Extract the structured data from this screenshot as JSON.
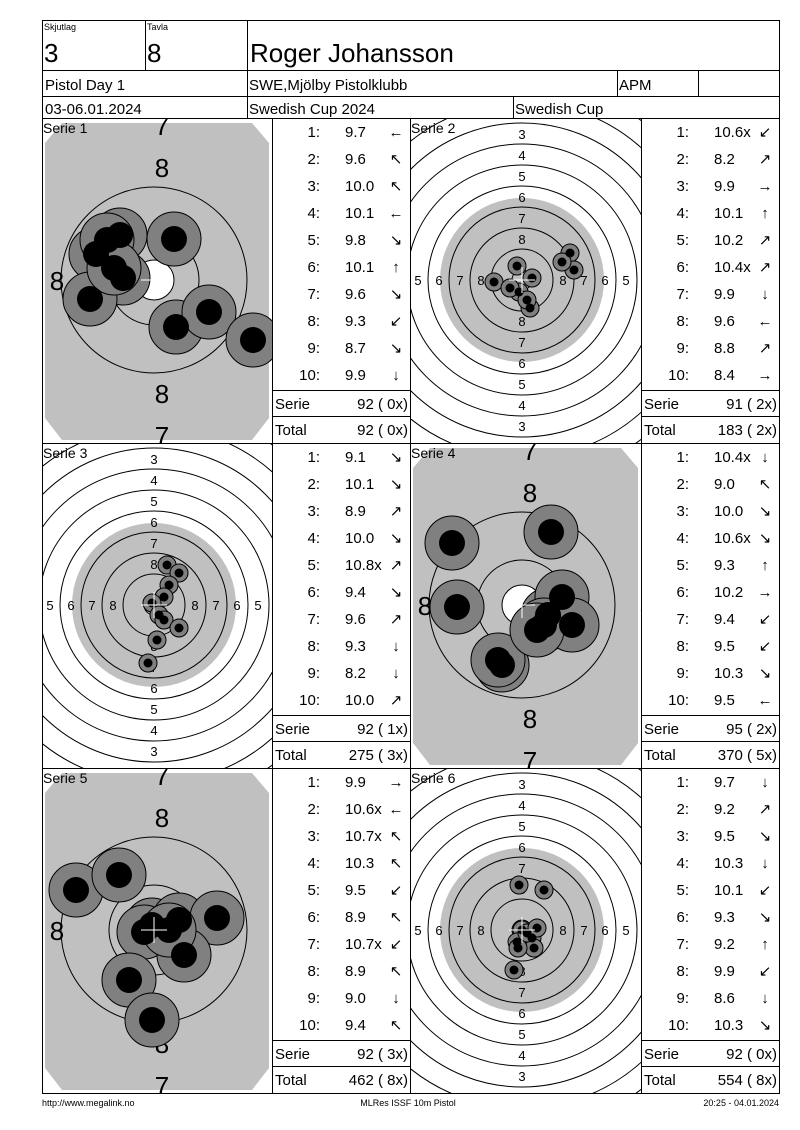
{
  "header": {
    "squad_label": "Skjutlag",
    "squad": "3",
    "lane_label": "Tavla",
    "lane": "8",
    "name": "Roger Johansson",
    "event": "Pistol Day 1",
    "club": "SWE,Mjölby Pistolklubb",
    "class": "APM",
    "date": "03-06.01.2024",
    "competition": "Swedish Cup 2024",
    "cup": "Swedish Cup"
  },
  "target_labels": {
    "zoom": {
      "inner": "8",
      "outer": "7"
    },
    "full": [
      "3",
      "4",
      "5",
      "6",
      "7",
      "8"
    ]
  },
  "series": [
    {
      "title": "Serie 1",
      "target": "zoom",
      "shots": [
        {
          "no": "1:",
          "score": "9.7",
          "dir": "←"
        },
        {
          "no": "2:",
          "score": "9.6",
          "dir": "↖"
        },
        {
          "no": "3:",
          "score": "10.0",
          "dir": "↖"
        },
        {
          "no": "4:",
          "score": "10.1",
          "dir": "←"
        },
        {
          "no": "5:",
          "score": "9.8",
          "dir": "↘"
        },
        {
          "no": "6:",
          "score": "10.1",
          "dir": "↑"
        },
        {
          "no": "7:",
          "score": "9.6",
          "dir": "↘"
        },
        {
          "no": "8:",
          "score": "9.3",
          "dir": "↙"
        },
        {
          "no": "9:",
          "score": "8.7",
          "dir": "↘"
        },
        {
          "no": "10:",
          "score": "9.9",
          "dir": "↓"
        }
      ],
      "serie_label": "Serie",
      "serie": "92 ( 0x)",
      "total_label": "Total",
      "total": "92 ( 0x)"
    },
    {
      "title": "Serie 2",
      "target": "full",
      "shots": [
        {
          "no": "1:",
          "score": "10.6x",
          "dir": "↙"
        },
        {
          "no": "2:",
          "score": "8.2",
          "dir": "↗"
        },
        {
          "no": "3:",
          "score": "9.9",
          "dir": "→"
        },
        {
          "no": "4:",
          "score": "10.1",
          "dir": "↑"
        },
        {
          "no": "5:",
          "score": "10.2",
          "dir": "↗"
        },
        {
          "no": "6:",
          "score": "10.4x",
          "dir": "↗"
        },
        {
          "no": "7:",
          "score": "9.9",
          "dir": "↓"
        },
        {
          "no": "8:",
          "score": "9.6",
          "dir": "←"
        },
        {
          "no": "9:",
          "score": "8.8",
          "dir": "↗"
        },
        {
          "no": "10:",
          "score": "8.4",
          "dir": "→"
        }
      ],
      "serie_label": "Serie",
      "serie": "91 ( 2x)",
      "total_label": "Total",
      "total": "183 ( 2x)"
    },
    {
      "title": "Serie 3",
      "target": "full",
      "shots": [
        {
          "no": "1:",
          "score": "9.1",
          "dir": "↘"
        },
        {
          "no": "2:",
          "score": "10.1",
          "dir": "↘"
        },
        {
          "no": "3:",
          "score": "8.9",
          "dir": "↗"
        },
        {
          "no": "4:",
          "score": "10.0",
          "dir": "↘"
        },
        {
          "no": "5:",
          "score": "10.8x",
          "dir": "↗"
        },
        {
          "no": "6:",
          "score": "9.4",
          "dir": "↘"
        },
        {
          "no": "7:",
          "score": "9.6",
          "dir": "↗"
        },
        {
          "no": "8:",
          "score": "9.3",
          "dir": "↓"
        },
        {
          "no": "9:",
          "score": "8.2",
          "dir": "↓"
        },
        {
          "no": "10:",
          "score": "10.0",
          "dir": "↗"
        }
      ],
      "serie_label": "Serie",
      "serie": "92 ( 1x)",
      "total_label": "Total",
      "total": "275 ( 3x)"
    },
    {
      "title": "Serie 4",
      "target": "zoom",
      "shots": [
        {
          "no": "1:",
          "score": "10.4x",
          "dir": "↓"
        },
        {
          "no": "2:",
          "score": "9.0",
          "dir": "↖"
        },
        {
          "no": "3:",
          "score": "10.0",
          "dir": "↘"
        },
        {
          "no": "4:",
          "score": "10.6x",
          "dir": "↘"
        },
        {
          "no": "5:",
          "score": "9.3",
          "dir": "↑"
        },
        {
          "no": "6:",
          "score": "10.2",
          "dir": "→"
        },
        {
          "no": "7:",
          "score": "9.4",
          "dir": "↙"
        },
        {
          "no": "8:",
          "score": "9.5",
          "dir": "↙"
        },
        {
          "no": "9:",
          "score": "10.3",
          "dir": "↘"
        },
        {
          "no": "10:",
          "score": "9.5",
          "dir": "←"
        }
      ],
      "serie_label": "Serie",
      "serie": "95 ( 2x)",
      "total_label": "Total",
      "total": "370 ( 5x)"
    },
    {
      "title": "Serie 5",
      "target": "zoom",
      "shots": [
        {
          "no": "1:",
          "score": "9.9",
          "dir": "→"
        },
        {
          "no": "2:",
          "score": "10.6x",
          "dir": "←"
        },
        {
          "no": "3:",
          "score": "10.7x",
          "dir": "↖"
        },
        {
          "no": "4:",
          "score": "10.3",
          "dir": "↖"
        },
        {
          "no": "5:",
          "score": "9.5",
          "dir": "↙"
        },
        {
          "no": "6:",
          "score": "8.9",
          "dir": "↖"
        },
        {
          "no": "7:",
          "score": "10.7x",
          "dir": "↙"
        },
        {
          "no": "8:",
          "score": "8.9",
          "dir": "↖"
        },
        {
          "no": "9:",
          "score": "9.0",
          "dir": "↓"
        },
        {
          "no": "10:",
          "score": "9.4",
          "dir": "↖"
        }
      ],
      "serie_label": "Serie",
      "serie": "92 ( 3x)",
      "total_label": "Total",
      "total": "462 ( 8x)"
    },
    {
      "title": "Serie 6",
      "target": "full",
      "shots": [
        {
          "no": "1:",
          "score": "9.7",
          "dir": "↓"
        },
        {
          "no": "2:",
          "score": "9.2",
          "dir": "↗"
        },
        {
          "no": "3:",
          "score": "9.5",
          "dir": "↘"
        },
        {
          "no": "4:",
          "score": "10.3",
          "dir": "↓"
        },
        {
          "no": "5:",
          "score": "10.1",
          "dir": "↙"
        },
        {
          "no": "6:",
          "score": "9.3",
          "dir": "↘"
        },
        {
          "no": "7:",
          "score": "9.2",
          "dir": "↑"
        },
        {
          "no": "8:",
          "score": "9.9",
          "dir": "↙"
        },
        {
          "no": "9:",
          "score": "8.6",
          "dir": "↓"
        },
        {
          "no": "10:",
          "score": "10.3",
          "dir": "↘"
        }
      ],
      "serie_label": "Serie",
      "serie": "92 ( 0x)",
      "total_label": "Total",
      "total": "554 ( 8x)"
    }
  ],
  "footer": {
    "left": "http://www.megalink.no",
    "center": "MLRes ISSF 10m Pistol",
    "right": "20:25 - 04.01.2024"
  }
}
